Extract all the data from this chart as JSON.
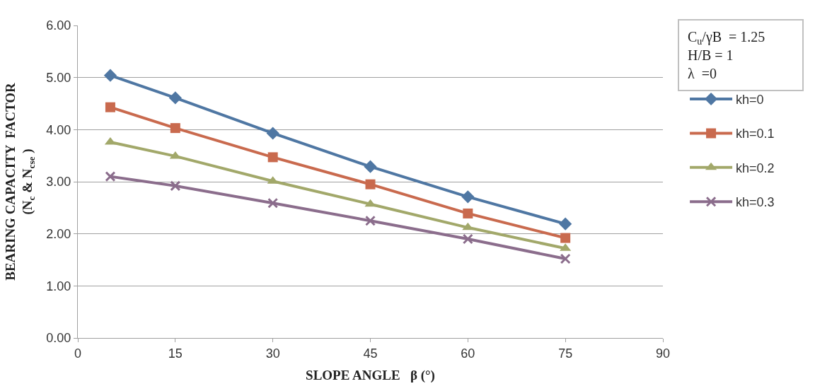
{
  "chart_data": {
    "type": "line",
    "xlabel": "SLOPE ANGLE   β (°)",
    "ylabel": "BEARING CAPACITY  FACTOR\n(N$_{c}$ & N$_{cse}$ )",
    "x": [
      5,
      15,
      30,
      45,
      60,
      75
    ],
    "series": [
      {
        "name": "kh=0",
        "color": "#4f77a3",
        "marker": "diamond",
        "values": [
          5.04,
          4.61,
          3.93,
          3.29,
          2.71,
          2.19
        ]
      },
      {
        "name": "kh=0.1",
        "color": "#c96a4e",
        "marker": "square",
        "values": [
          4.43,
          4.03,
          3.47,
          2.95,
          2.39,
          1.92
        ]
      },
      {
        "name": "kh=0.2",
        "color": "#a2a86a",
        "marker": "triangle",
        "values": [
          3.76,
          3.49,
          3.01,
          2.57,
          2.12,
          1.72
        ]
      },
      {
        "name": "kh=0.3",
        "color": "#8b6d8c",
        "marker": "cross",
        "values": [
          3.1,
          2.92,
          2.59,
          2.25,
          1.9,
          1.52
        ]
      }
    ],
    "xlim": [
      0,
      90
    ],
    "xticks": [
      0,
      15,
      30,
      45,
      60,
      75,
      90
    ],
    "ylim": [
      0,
      6
    ],
    "yticks": [
      {
        "value": 0,
        "label": "0.00"
      },
      {
        "value": 1,
        "label": "1.00"
      },
      {
        "value": 2,
        "label": "2.00"
      },
      {
        "value": 3,
        "label": "3.00"
      },
      {
        "value": 4,
        "label": "4.00"
      },
      {
        "value": 5,
        "label": "5.00"
      },
      {
        "value": 6,
        "label": "6.00"
      }
    ],
    "grid": "y",
    "legend": "right",
    "annotations": [
      "C$_{u}$/γB  = 1.25\nH/B = 1\nλ  =0"
    ]
  }
}
